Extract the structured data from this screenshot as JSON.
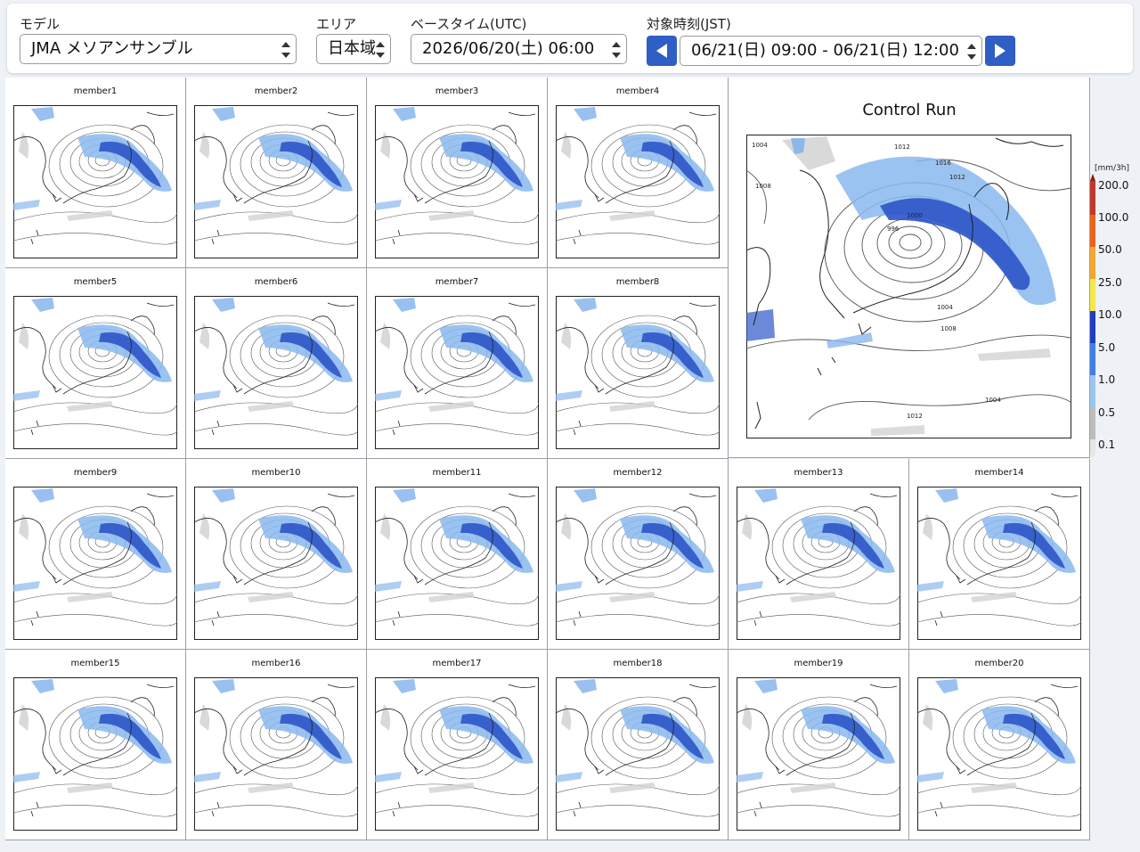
{
  "header": {
    "model": {
      "label": "モデル",
      "value": "JMA メソアンサンブル"
    },
    "area": {
      "label": "エリア",
      "value": "日本域"
    },
    "base_time": {
      "label": "ベースタイム(UTC)",
      "value": "2026/06/20(土) 06:00"
    },
    "target_time": {
      "label": "対象時刻(JST)",
      "value": "06/21(日) 09:00 - 06/21(日) 12:00"
    }
  },
  "members": [
    {
      "label": "member1"
    },
    {
      "label": "member2"
    },
    {
      "label": "member3"
    },
    {
      "label": "member4"
    },
    {
      "label": "member5"
    },
    {
      "label": "member6"
    },
    {
      "label": "member7"
    },
    {
      "label": "member8"
    },
    {
      "label": "member9"
    },
    {
      "label": "member10"
    },
    {
      "label": "member11"
    },
    {
      "label": "member12"
    },
    {
      "label": "member13"
    },
    {
      "label": "member14"
    },
    {
      "label": "member15"
    },
    {
      "label": "member16"
    },
    {
      "label": "member17"
    },
    {
      "label": "member18"
    },
    {
      "label": "member19"
    },
    {
      "label": "member20"
    }
  ],
  "control": {
    "title": "Control Run",
    "isobar_labels": [
      "1016",
      "1012",
      "1008",
      "1004",
      "1000",
      "996",
      "1004",
      "1008",
      "1012",
      "1004",
      "1012"
    ]
  },
  "colorbar": {
    "unit": "[mm/3h]",
    "ticks": [
      "200.0",
      "100.0",
      "50.0",
      "25.0",
      "10.0",
      "5.0",
      "1.0",
      "0.5",
      "0.1"
    ],
    "colors": [
      "#c0392b",
      "#e8641e",
      "#f0a830",
      "#f5e84a",
      "#1f3fbf",
      "#3f7fe0",
      "#9cc4f0",
      "#bdbdbd",
      "#e6e6e6"
    ]
  }
}
